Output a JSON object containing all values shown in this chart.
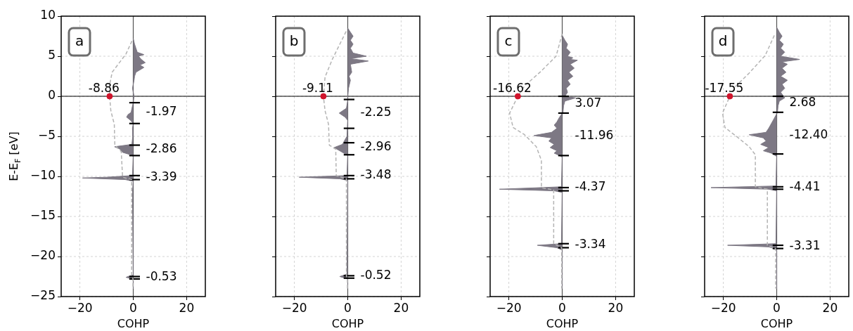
{
  "chart_data": [
    {
      "type": "area",
      "title": "a",
      "xlabel": "COHP",
      "ylabel": "E-E$_{F}$ [eV]",
      "xlim": [
        -27,
        27
      ],
      "ylim": [
        -25,
        10
      ],
      "xticks": [
        -20,
        0,
        20
      ],
      "yticks": [
        -25,
        -20,
        -15,
        -10,
        -5,
        0,
        5,
        10
      ],
      "grid": true,
      "series": [
        {
          "type": "area",
          "color": "#7d7884",
          "x": [
            0,
            0.5,
            1,
            1.5,
            4,
            2,
            3,
            4.5,
            2.5,
            4,
            2.5,
            1,
            0.5,
            0.3,
            -0.3,
            0,
            0.3,
            0,
            -0.5,
            -0.8,
            -2,
            -2.5,
            -1,
            0,
            -0.3,
            -0.2,
            -0.5,
            -7,
            -5,
            -4,
            -1,
            0,
            -0.3,
            -10,
            -19,
            -3,
            0,
            -0.3,
            0,
            -2,
            -2.7,
            0,
            0
          ],
          "values": [
            7.2,
            6.5,
            6,
            5.5,
            5.2,
            5,
            4.6,
            4.2,
            3.9,
            3.6,
            3.3,
            3,
            2.5,
            2,
            1,
            0.5,
            0,
            -0.8,
            -1.5,
            -2,
            -2.3,
            -2.6,
            -3,
            -3.4,
            -4,
            -5,
            -6,
            -6.3,
            -6.6,
            -7,
            -7.3,
            -7.5,
            -9.9,
            -10.1,
            -10.2,
            -10.4,
            -10.6,
            -12,
            -22.3,
            -22.5,
            -22.6,
            -22.8,
            -24
          ]
        },
        {
          "type": "line",
          "line_style": "dashed",
          "color": "#b4b4b4",
          "x": [
            -0.5,
            -2.7,
            -7.9,
            -8.8,
            -8.86,
            -8.4,
            -7.1,
            -6.9,
            -4.5,
            -4,
            -0.6,
            -0.6,
            -0.1,
            -0.1
          ],
          "values": [
            6.9,
            5.3,
            3,
            1.5,
            0,
            -1.8,
            -3.5,
            -6.1,
            -6.9,
            -10.1,
            -10.4,
            -22.4,
            -22.8,
            -24
          ]
        },
        {
          "type": "line",
          "color": "#000000",
          "x": [
            -1.5,
            2.5
          ],
          "values": [
            -0.8,
            -0.8
          ]
        },
        {
          "type": "line",
          "color": "#000000",
          "x": [
            -1.5,
            2.5
          ],
          "values": [
            -3.4,
            -3.4
          ]
        },
        {
          "type": "line",
          "color": "#000000",
          "x": [
            -1.5,
            2.5
          ],
          "values": [
            -6.1,
            -6.1
          ]
        },
        {
          "type": "line",
          "color": "#000000",
          "x": [
            -1.5,
            2.5
          ],
          "values": [
            -7.4,
            -7.4
          ]
        },
        {
          "type": "line",
          "color": "#000000",
          "x": [
            -1.5,
            2.5
          ],
          "values": [
            -9.9,
            -9.9
          ]
        },
        {
          "type": "line",
          "color": "#000000",
          "x": [
            -1.5,
            2.5
          ],
          "values": [
            -10.4,
            -10.4
          ]
        },
        {
          "type": "line",
          "color": "#000000",
          "x": [
            -1.5,
            2.5
          ],
          "values": [
            -22.5,
            -22.5
          ]
        },
        {
          "type": "line",
          "color": "#000000",
          "x": [
            -1.5,
            2.5
          ],
          "values": [
            -22.8,
            -22.8
          ]
        },
        {
          "type": "scatter",
          "marker": "circle",
          "color": "#d0142c",
          "x": [
            -8.86
          ],
          "values": [
            0
          ]
        }
      ],
      "ref_lines": [
        {
          "axis": "y",
          "value": 0,
          "color": "#000000"
        },
        {
          "axis": "x",
          "value": 0,
          "color": "#555555"
        }
      ],
      "annotations": [
        {
          "text": "-8.86",
          "x": -8.86,
          "y": 0
        },
        {
          "text": "-1.97",
          "x": 0,
          "y": -2
        },
        {
          "text": "-2.86",
          "x": 0,
          "y": -6.6
        },
        {
          "text": "-3.39",
          "x": 0,
          "y": -10.1
        },
        {
          "text": "-0.53",
          "x": 0,
          "y": -22.6
        }
      ]
    },
    {
      "type": "area",
      "title": "b",
      "xlabel": "COHP",
      "xlim": [
        -27,
        27
      ],
      "ylim": [
        -25,
        10
      ],
      "xticks": [
        -20,
        0,
        20
      ],
      "yticks": [
        -25,
        -20,
        -15,
        -10,
        -5,
        0,
        5,
        10
      ],
      "grid": true,
      "tick_labels": "x",
      "series": [
        {
          "type": "area",
          "color": "#7d7884",
          "x": [
            0,
            1,
            2,
            1,
            2,
            1,
            2,
            7,
            1,
            7.7,
            1,
            1.5,
            0.5,
            1,
            0.3,
            0,
            0,
            -0.5,
            -3.2,
            -1,
            0,
            -0.3,
            -2,
            -5.1,
            -3,
            -1,
            0,
            -0.3,
            -18.2,
            -3,
            0,
            -0.3,
            -3,
            0,
            0
          ],
          "values": [
            8.5,
            8,
            7.5,
            7,
            6.5,
            6,
            5.4,
            5,
            4.7,
            4.4,
            4,
            3,
            2.5,
            2,
            1,
            0,
            -0.5,
            -1.5,
            -2.1,
            -2.6,
            -3,
            -5,
            -6,
            -6.4,
            -6.8,
            -7.2,
            -7.4,
            -9.9,
            -10.1,
            -10.3,
            -10.5,
            -22.2,
            -22.5,
            -22.8,
            -24
          ]
        },
        {
          "type": "line",
          "line_style": "dashed",
          "color": "#b4b4b4",
          "x": [
            -0.6,
            -5.8,
            -8.5,
            -9.11,
            -8.5,
            -7.2,
            -6.9,
            -4.5,
            -4.3,
            -0.5,
            -0.5,
            -0.1,
            -0.1
          ],
          "values": [
            8.1,
            4.6,
            2.4,
            0,
            -1.8,
            -3.5,
            -6.1,
            -6.6,
            -9.9,
            -10.3,
            -22.4,
            -22.8,
            -24
          ]
        },
        {
          "type": "line",
          "color": "#000000",
          "x": [
            -1.5,
            2.5
          ],
          "values": [
            -0.4,
            -0.4
          ]
        },
        {
          "type": "line",
          "color": "#000000",
          "x": [
            -1.5,
            2.5
          ],
          "values": [
            -4,
            -4
          ]
        },
        {
          "type": "line",
          "color": "#000000",
          "x": [
            -1.5,
            2.5
          ],
          "values": [
            -5.8,
            -5.8
          ]
        },
        {
          "type": "line",
          "color": "#000000",
          "x": [
            -1.5,
            2.5
          ],
          "values": [
            -7.3,
            -7.3
          ]
        },
        {
          "type": "line",
          "color": "#000000",
          "x": [
            -1.5,
            2.5
          ],
          "values": [
            -9.9,
            -9.9
          ]
        },
        {
          "type": "line",
          "color": "#000000",
          "x": [
            -1.5,
            2.5
          ],
          "values": [
            -10.3,
            -10.3
          ]
        },
        {
          "type": "line",
          "color": "#000000",
          "x": [
            -1.5,
            2.5
          ],
          "values": [
            -22.4,
            -22.4
          ]
        },
        {
          "type": "line",
          "color": "#000000",
          "x": [
            -1.5,
            2.5
          ],
          "values": [
            -22.7,
            -22.7
          ]
        },
        {
          "type": "scatter",
          "marker": "circle",
          "color": "#d0142c",
          "x": [
            -9.11
          ],
          "values": [
            0
          ]
        }
      ],
      "ref_lines": [
        {
          "axis": "y",
          "value": 0,
          "color": "#000000"
        },
        {
          "axis": "x",
          "value": 0,
          "color": "#555555"
        }
      ],
      "annotations": [
        {
          "text": "-9.11",
          "x": -9.11,
          "y": 0
        },
        {
          "text": "-2.25",
          "x": 0,
          "y": -2.1
        },
        {
          "text": "-2.96",
          "x": 0,
          "y": -6.4
        },
        {
          "text": "-3.48",
          "x": 0,
          "y": -9.9
        },
        {
          "text": "-0.52",
          "x": 0,
          "y": -22.4
        }
      ]
    },
    {
      "type": "area",
      "title": "c",
      "xlabel": "COHP",
      "xlim": [
        -27,
        27
      ],
      "ylim": [
        -25,
        10
      ],
      "xticks": [
        -20,
        0,
        20
      ],
      "yticks": [
        -25,
        -20,
        -15,
        -10,
        -5,
        0,
        5,
        10
      ],
      "grid": true,
      "tick_labels": "x",
      "series": [
        {
          "type": "area",
          "color": "#7d7884",
          "x": [
            0,
            1,
            2,
            1.5,
            3,
            2,
            4,
            3,
            5.7,
            3,
            4.5,
            2.5,
            4,
            2,
            3,
            1.5,
            2,
            1,
            5,
            1,
            0.5,
            0.3,
            -1,
            -2,
            -3,
            -2,
            -4,
            -10.6,
            -4,
            -5,
            -3,
            -4.5,
            -2,
            -3,
            -1,
            0,
            -0.3,
            -23.5,
            -3,
            0,
            -0.3,
            -9.3,
            -2,
            0,
            0
          ],
          "values": [
            7.6,
            7,
            6.5,
            6,
            5.5,
            5,
            4.8,
            4.6,
            4.5,
            4,
            3.5,
            3,
            2.5,
            2,
            1.5,
            1,
            0.5,
            0,
            -0.2,
            -0.6,
            -1.2,
            -2,
            -2.6,
            -3.2,
            -3.6,
            -4,
            -4.5,
            -4.9,
            -5.2,
            -5.6,
            -6,
            -6.4,
            -6.8,
            -7.1,
            -7.4,
            -7.6,
            -11.3,
            -11.6,
            -11.8,
            -12,
            -18.4,
            -18.6,
            -18.9,
            -19.2,
            -24
          ]
        },
        {
          "type": "line",
          "line_style": "dashed",
          "color": "#b4b4b4",
          "x": [
            0,
            -2.3,
            -8,
            -14.1,
            -16.62,
            -19.7,
            -18.4,
            -14.1,
            -9.7,
            -7.8,
            -7.8,
            -3.2,
            -3.2,
            -0.2,
            -0.2
          ],
          "values": [
            7.8,
            5,
            3.1,
            1.3,
            0,
            -2.1,
            -3.9,
            -4.8,
            -6.3,
            -8,
            -11.4,
            -11.7,
            -18.4,
            -18.9,
            -24
          ]
        },
        {
          "type": "line",
          "color": "#000000",
          "x": [
            -1.5,
            2.5
          ],
          "values": [
            0,
            0
          ]
        },
        {
          "type": "line",
          "color": "#000000",
          "x": [
            -1.5,
            2.5
          ],
          "values": [
            -2.1,
            -2.1
          ]
        },
        {
          "type": "line",
          "color": "#000000",
          "x": [
            -1.5,
            2.5
          ],
          "values": [
            -7.4,
            -7.4
          ]
        },
        {
          "type": "line",
          "color": "#000000",
          "x": [
            -1.5,
            2.5
          ],
          "values": [
            -11.4,
            -11.4
          ]
        },
        {
          "type": "line",
          "color": "#000000",
          "x": [
            -1.5,
            2.5
          ],
          "values": [
            -11.8,
            -11.8
          ]
        },
        {
          "type": "line",
          "color": "#000000",
          "x": [
            -1.5,
            2.5
          ],
          "values": [
            -18.4,
            -18.4
          ]
        },
        {
          "type": "line",
          "color": "#000000",
          "x": [
            -1.5,
            2.5
          ],
          "values": [
            -18.9,
            -18.9
          ]
        },
        {
          "type": "scatter",
          "marker": "circle",
          "color": "#d0142c",
          "x": [
            -16.62
          ],
          "values": [
            0
          ]
        }
      ],
      "ref_lines": [
        {
          "axis": "y",
          "value": 0,
          "color": "#000000"
        },
        {
          "axis": "x",
          "value": 0,
          "color": "#555555"
        }
      ],
      "annotations": [
        {
          "text": "-16.62",
          "x": -16.62,
          "y": 0
        },
        {
          "text": "3.07",
          "x": 0,
          "y": -0.9
        },
        {
          "text": "-11.96",
          "x": 0,
          "y": -5
        },
        {
          "text": "-4.37",
          "x": 0,
          "y": -11.4
        },
        {
          "text": "-3.34",
          "x": 0,
          "y": -18.6
        }
      ]
    },
    {
      "type": "area",
      "title": "d",
      "xlabel": "COHP",
      "xlim": [
        -27,
        27
      ],
      "ylim": [
        -25,
        10
      ],
      "xticks": [
        -20,
        0,
        20
      ],
      "yticks": [
        -25,
        -20,
        -15,
        -10,
        -5,
        0,
        5,
        10
      ],
      "grid": true,
      "tick_labels": "x",
      "series": [
        {
          "type": "area",
          "color": "#7d7884",
          "x": [
            0,
            1,
            2,
            1,
            2.5,
            1.5,
            3,
            1.5,
            8.6,
            2,
            4,
            2,
            3.5,
            1.5,
            4,
            2,
            3,
            1.5,
            3,
            1,
            0.5,
            0.3,
            -1,
            -2,
            -3,
            -4,
            -10.3,
            -5,
            -4,
            -6,
            -3,
            -5,
            -2,
            -1,
            0,
            -0.3,
            -24.6,
            -3,
            0,
            -0.3,
            -18.4,
            -3,
            0,
            0
          ],
          "values": [
            8.6,
            8,
            7.5,
            7,
            6.5,
            6,
            5.5,
            5,
            4.6,
            4.3,
            4,
            3.5,
            3,
            2.5,
            2,
            1.5,
            1,
            0.5,
            -0.2,
            -0.6,
            -1.2,
            -2,
            -2.8,
            -3.4,
            -4,
            -4.5,
            -4.8,
            -5.2,
            -5.6,
            -6,
            -6.4,
            -6.8,
            -7.1,
            -7.3,
            -7.5,
            -11.2,
            -11.4,
            -11.6,
            -11.8,
            -18.4,
            -18.6,
            -18.8,
            -19.1,
            -24
          ]
        },
        {
          "type": "line",
          "line_style": "dashed",
          "color": "#b4b4b4",
          "x": [
            -0.9,
            -4.3,
            -10.3,
            -15.5,
            -17.55,
            -20.3,
            -19.4,
            -14.7,
            -10.3,
            -8,
            -8,
            -3.5,
            -3.5,
            -0.4,
            -0.4
          ],
          "values": [
            7.6,
            5.1,
            2.9,
            1.2,
            0,
            -2.1,
            -3.9,
            -5.1,
            -6.3,
            -7.3,
            -11.3,
            -11.6,
            -18.6,
            -19,
            -24
          ]
        },
        {
          "type": "line",
          "color": "#000000",
          "x": [
            -1.5,
            2.5
          ],
          "values": [
            0,
            0
          ]
        },
        {
          "type": "line",
          "color": "#000000",
          "x": [
            -1.5,
            2.5
          ],
          "values": [
            -2,
            -2
          ]
        },
        {
          "type": "line",
          "color": "#000000",
          "x": [
            -1.5,
            2.5
          ],
          "values": [
            -7.2,
            -7.2
          ]
        },
        {
          "type": "line",
          "color": "#000000",
          "x": [
            -1.5,
            2.5
          ],
          "values": [
            -11.3,
            -11.3
          ]
        },
        {
          "type": "line",
          "color": "#000000",
          "x": [
            -1.5,
            2.5
          ],
          "values": [
            -11.6,
            -11.6
          ]
        },
        {
          "type": "line",
          "color": "#000000",
          "x": [
            -1.5,
            2.5
          ],
          "values": [
            -18.6,
            -18.6
          ]
        },
        {
          "type": "line",
          "color": "#000000",
          "x": [
            -1.5,
            2.5
          ],
          "values": [
            -19,
            -19
          ]
        },
        {
          "type": "scatter",
          "marker": "circle",
          "color": "#d0142c",
          "x": [
            -17.55
          ],
          "values": [
            0
          ]
        }
      ],
      "ref_lines": [
        {
          "axis": "y",
          "value": 0,
          "color": "#000000"
        },
        {
          "axis": "x",
          "value": 0,
          "color": "#555555"
        }
      ],
      "annotations": [
        {
          "text": "-17.55",
          "x": -17.55,
          "y": 0
        },
        {
          "text": "2.68",
          "x": 0,
          "y": -0.8
        },
        {
          "text": "-12.40",
          "x": 0,
          "y": -4.9
        },
        {
          "text": "-4.41",
          "x": 0,
          "y": -11.4
        },
        {
          "text": "-3.31",
          "x": 0,
          "y": -18.7
        }
      ]
    }
  ]
}
